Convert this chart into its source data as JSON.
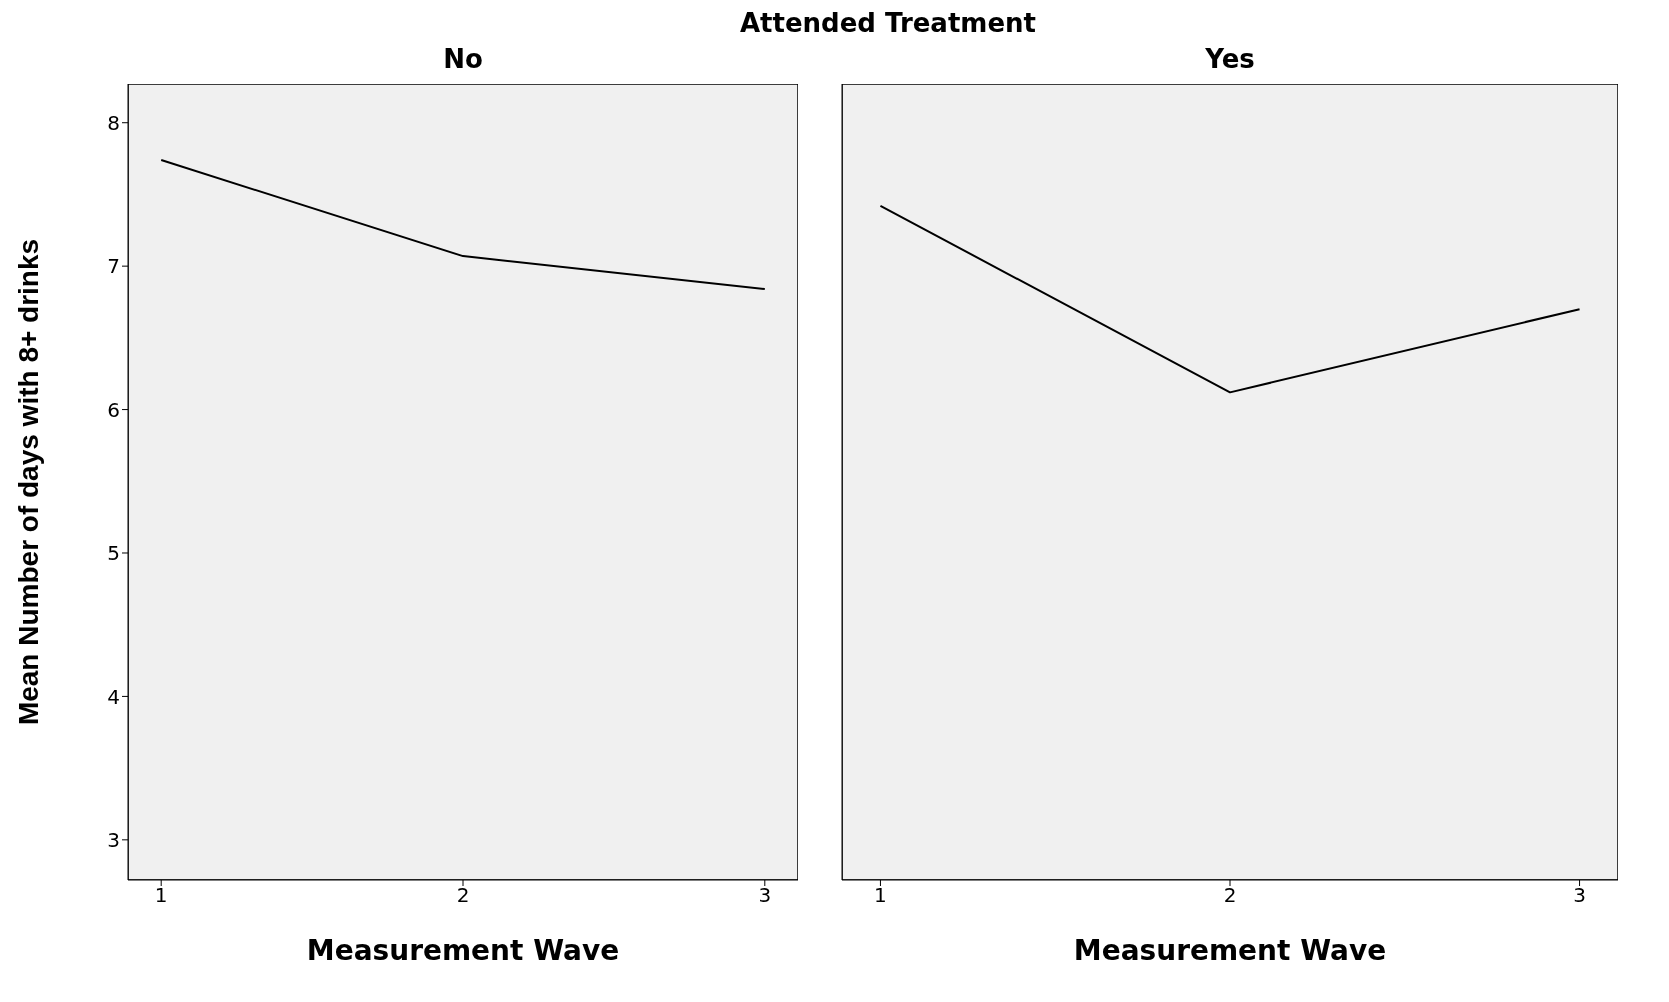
{
  "chart_data": [
    {
      "type": "line",
      "title": "No",
      "annotations": [
        "Attended Treatment"
      ],
      "xlabel": "Measurement Wave",
      "ylabel": "Mean Number of days with 8+ drinks",
      "x": [
        1,
        2,
        3
      ],
      "xlim": [
        0.89,
        3.11
      ],
      "xticks": [
        1,
        2,
        3
      ],
      "ylim": [
        2.72,
        8.27
      ],
      "yticks": [
        3,
        4,
        5,
        6,
        7,
        8
      ],
      "grid": false,
      "marker": "none",
      "line_style": "solid",
      "legend": false,
      "series": [
        {
          "color": "#000000",
          "values": [
            7.74,
            7.07,
            6.84
          ]
        }
      ]
    },
    {
      "type": "line",
      "title": "Yes",
      "xlabel": "Measurement Wave",
      "x": [
        1,
        2,
        3
      ],
      "xlim": [
        0.89,
        3.11
      ],
      "xticks": [
        1,
        2,
        3
      ],
      "ylim": [
        2.72,
        8.27
      ],
      "yticks": [
        3,
        4,
        5,
        6,
        7,
        8
      ],
      "tick_labels": "x",
      "grid": false,
      "marker": "none",
      "line_style": "solid",
      "legend": false,
      "series": [
        {
          "color": "#000000",
          "values": [
            7.42,
            6.12,
            6.7
          ]
        }
      ]
    }
  ]
}
